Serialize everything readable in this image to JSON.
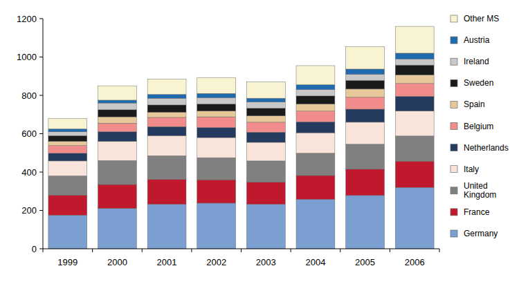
{
  "chart_data": {
    "type": "bar",
    "stacked": true,
    "grid": false,
    "legend": "right",
    "categories": [
      "1999",
      "2000",
      "2001",
      "2002",
      "2003",
      "2004",
      "2005",
      "2006"
    ],
    "ylim": [
      0,
      1200
    ],
    "yticks": [
      0,
      200,
      400,
      600,
      800,
      1000,
      1200
    ],
    "series": [
      {
        "name": "Germany",
        "color": "#7a9fd0",
        "values": [
          175,
          210,
          232,
          238,
          232,
          258,
          278,
          320
        ]
      },
      {
        "name": "France",
        "color": "#c0182c",
        "values": [
          105,
          125,
          130,
          122,
          116,
          124,
          137,
          137
        ]
      },
      {
        "name": "United Kingdom",
        "color": "#808080",
        "values": [
          100,
          125,
          123,
          115,
          110,
          116,
          130,
          131
        ]
      },
      {
        "name": "Italy",
        "color": "#f8e4da",
        "values": [
          78,
          100,
          105,
          105,
          97,
          107,
          115,
          130
        ]
      },
      {
        "name": "Netherlands",
        "color": "#243a5e",
        "values": [
          40,
          50,
          47,
          52,
          53,
          57,
          68,
          77
        ]
      },
      {
        "name": "Belgium",
        "color": "#f08c8c",
        "values": [
          40,
          45,
          48,
          56,
          52,
          56,
          62,
          67
        ]
      },
      {
        "name": "Spain",
        "color": "#e6c89a",
        "values": [
          22,
          33,
          27,
          30,
          33,
          37,
          43,
          45
        ]
      },
      {
        "name": "Sweden",
        "color": "#1a1a1a",
        "values": [
          30,
          37,
          38,
          37,
          40,
          42,
          45,
          51
        ]
      },
      {
        "name": "Ireland",
        "color": "#c8c8c8",
        "values": [
          20,
          35,
          35,
          33,
          32,
          33,
          32,
          32
        ]
      },
      {
        "name": "Austria",
        "color": "#1f6bb0",
        "values": [
          15,
          15,
          20,
          22,
          20,
          25,
          27,
          30
        ]
      },
      {
        "name": "Other MS",
        "color": "#f8f4d2",
        "values": [
          55,
          75,
          80,
          83,
          85,
          100,
          118,
          140
        ]
      }
    ]
  }
}
